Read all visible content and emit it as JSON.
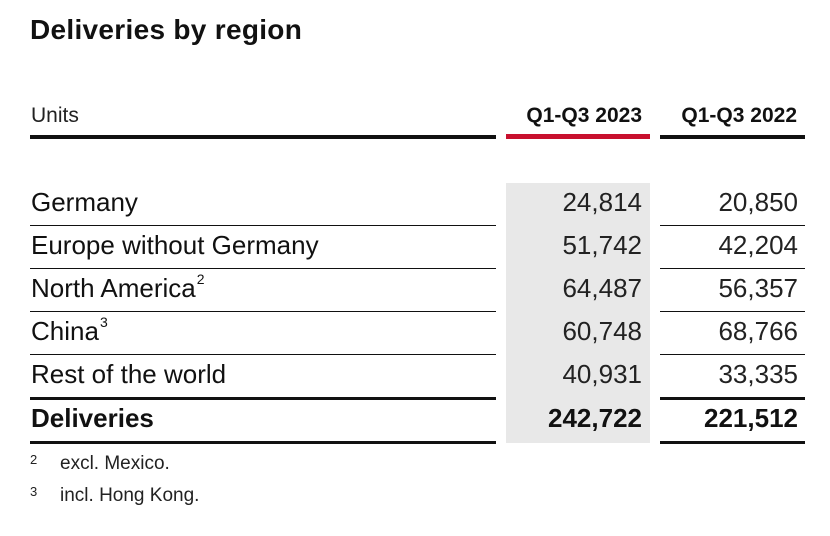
{
  "title": "Deliveries by region",
  "header": {
    "units_label": "Units",
    "col1": "Q1-Q3 2023",
    "col2": "Q1-Q3 2022"
  },
  "accent_color": "#c8102e",
  "rows": [
    {
      "label": "Germany",
      "sup": "",
      "v2023": "24,814",
      "v2022": "20,850"
    },
    {
      "label": "Europe without Germany",
      "sup": "",
      "v2023": "51,742",
      "v2022": "42,204"
    },
    {
      "label": "North America",
      "sup": "2",
      "v2023": "64,487",
      "v2022": "56,357"
    },
    {
      "label": "China",
      "sup": "3",
      "v2023": "60,748",
      "v2022": "68,766"
    },
    {
      "label": "Rest of the world",
      "sup": "",
      "v2023": "40,931",
      "v2022": "33,335"
    }
  ],
  "total": {
    "label": "Deliveries",
    "v2023": "242,722",
    "v2022": "221,512"
  },
  "footnotes": [
    {
      "mark": "2",
      "text": "excl. Mexico."
    },
    {
      "mark": "3",
      "text": "incl. Hong Kong."
    }
  ]
}
